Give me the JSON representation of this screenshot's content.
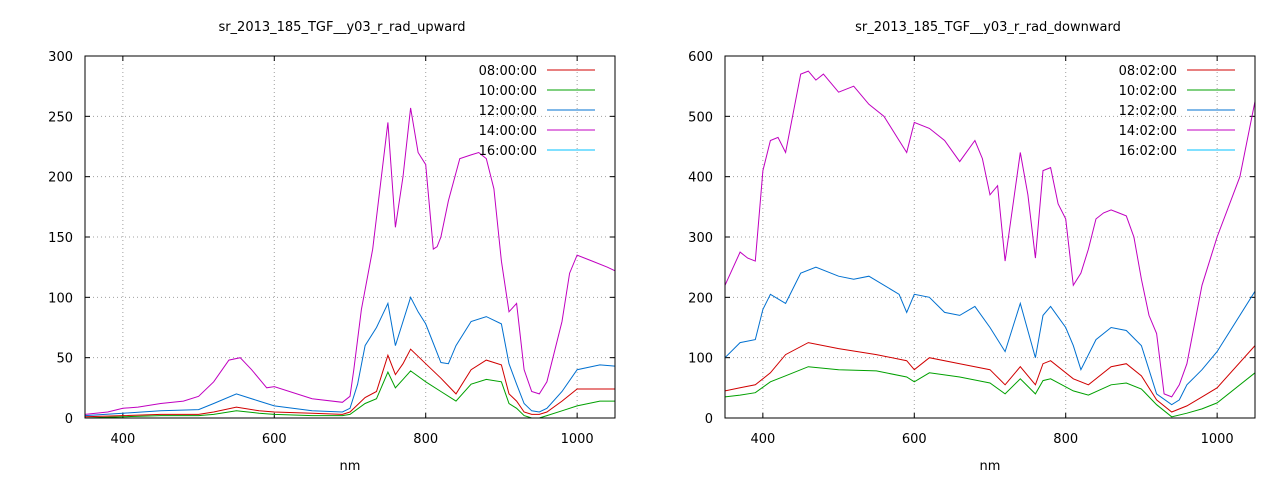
{
  "chart_data": [
    {
      "type": "line",
      "title": "sr_2013_185_TGF__y03_r_rad_upward",
      "xlabel": "nm",
      "ylabel": "",
      "xlim": [
        350,
        1050
      ],
      "ylim": [
        0,
        300
      ],
      "xticks": [
        "400",
        "600",
        "800",
        "1000"
      ],
      "yticks": [
        "0",
        "50",
        "100",
        "150",
        "200",
        "250",
        "300"
      ],
      "grid": true,
      "legend_position": "top-right",
      "series": [
        {
          "name": "08:00:00",
          "color": "#d00000",
          "x": [
            350,
            400,
            450,
            500,
            520,
            550,
            580,
            600,
            650,
            690,
            700,
            720,
            735,
            750,
            760,
            770,
            780,
            800,
            820,
            840,
            860,
            880,
            900,
            910,
            920,
            930,
            940,
            950,
            960,
            980,
            1000,
            1030,
            1050
          ],
          "y": [
            1,
            2,
            3,
            3,
            5,
            9,
            6,
            5,
            4,
            3,
            5,
            17,
            22,
            52,
            36,
            45,
            57,
            45,
            33,
            20,
            40,
            48,
            44,
            20,
            14,
            5,
            3,
            3,
            5,
            14,
            24,
            24,
            24
          ]
        },
        {
          "name": "10:00:00",
          "color": "#00a000",
          "x": [
            350,
            400,
            450,
            500,
            520,
            550,
            580,
            600,
            650,
            690,
            700,
            720,
            735,
            750,
            760,
            770,
            780,
            800,
            820,
            840,
            860,
            880,
            900,
            910,
            920,
            930,
            940,
            950,
            960,
            980,
            1000,
            1030,
            1050
          ],
          "y": [
            0,
            1,
            2,
            2,
            3,
            6,
            4,
            3,
            2,
            2,
            3,
            12,
            16,
            38,
            25,
            32,
            39,
            30,
            22,
            14,
            28,
            32,
            30,
            12,
            8,
            2,
            0,
            0,
            2,
            6,
            10,
            14,
            14
          ]
        },
        {
          "name": "12:00:00",
          "color": "#0070d0",
          "x": [
            350,
            400,
            450,
            500,
            520,
            550,
            580,
            600,
            650,
            690,
            700,
            710,
            720,
            735,
            750,
            760,
            770,
            780,
            790,
            800,
            820,
            830,
            840,
            860,
            880,
            900,
            910,
            920,
            930,
            940,
            950,
            960,
            980,
            1000,
            1030,
            1050
          ],
          "y": [
            2,
            4,
            6,
            7,
            12,
            20,
            14,
            10,
            6,
            5,
            8,
            28,
            60,
            75,
            95,
            60,
            80,
            100,
            88,
            78,
            46,
            45,
            60,
            80,
            84,
            78,
            45,
            28,
            12,
            6,
            5,
            8,
            22,
            40,
            44,
            43
          ]
        },
        {
          "name": "14:00:00",
          "color": "#c000c0",
          "x": [
            350,
            380,
            400,
            420,
            450,
            480,
            500,
            520,
            540,
            555,
            570,
            590,
            600,
            650,
            690,
            700,
            705,
            715,
            730,
            750,
            760,
            770,
            780,
            790,
            800,
            810,
            815,
            820,
            830,
            845,
            860,
            870,
            880,
            890,
            900,
            910,
            920,
            930,
            940,
            950,
            960,
            980,
            990,
            1000,
            1020,
            1040,
            1050
          ],
          "y": [
            3,
            5,
            8,
            9,
            12,
            14,
            18,
            30,
            48,
            50,
            40,
            25,
            26,
            16,
            13,
            18,
            40,
            90,
            140,
            245,
            158,
            200,
            257,
            220,
            210,
            140,
            142,
            150,
            180,
            215,
            218,
            220,
            215,
            190,
            130,
            88,
            95,
            40,
            22,
            20,
            30,
            80,
            120,
            135,
            130,
            125,
            122
          ]
        },
        {
          "name": "16:00:00",
          "color": "#00c0ff",
          "x": [
            350,
            400,
            500,
            600,
            700,
            760,
            800,
            900,
            1000,
            1050
          ],
          "y": [
            0,
            0,
            0,
            0,
            0,
            0,
            0,
            0,
            0,
            0
          ]
        }
      ]
    },
    {
      "type": "line",
      "title": "sr_2013_185_TGF__y03_r_rad_downward",
      "xlabel": "nm",
      "ylabel": "",
      "xlim": [
        350,
        1050
      ],
      "ylim": [
        0,
        600
      ],
      "xticks": [
        "400",
        "600",
        "800",
        "1000"
      ],
      "yticks": [
        "0",
        "100",
        "200",
        "300",
        "400",
        "500",
        "600"
      ],
      "grid": true,
      "legend_position": "top-right",
      "series": [
        {
          "name": "08:02:00",
          "color": "#d00000",
          "x": [
            350,
            370,
            390,
            410,
            430,
            460,
            500,
            550,
            590,
            600,
            620,
            660,
            700,
            720,
            740,
            760,
            770,
            780,
            810,
            830,
            860,
            880,
            900,
            920,
            940,
            960,
            980,
            1000,
            1050
          ],
          "y": [
            45,
            50,
            55,
            75,
            105,
            125,
            115,
            105,
            95,
            80,
            100,
            90,
            80,
            55,
            85,
            55,
            90,
            95,
            65,
            55,
            85,
            90,
            70,
            30,
            10,
            20,
            35,
            50,
            120
          ]
        },
        {
          "name": "10:02:00",
          "color": "#00a000",
          "x": [
            350,
            370,
            390,
            410,
            430,
            460,
            500,
            550,
            590,
            600,
            620,
            660,
            700,
            720,
            740,
            760,
            770,
            780,
            810,
            830,
            860,
            880,
            900,
            920,
            940,
            960,
            980,
            1000,
            1050
          ],
          "y": [
            35,
            38,
            42,
            60,
            70,
            85,
            80,
            78,
            68,
            60,
            75,
            68,
            58,
            40,
            65,
            40,
            62,
            65,
            45,
            38,
            55,
            58,
            48,
            22,
            2,
            8,
            15,
            25,
            75
          ]
        },
        {
          "name": "12:02:00",
          "color": "#0070d0",
          "x": [
            350,
            370,
            390,
            400,
            410,
            430,
            450,
            470,
            500,
            520,
            540,
            580,
            590,
            600,
            620,
            640,
            660,
            680,
            700,
            720,
            740,
            760,
            770,
            780,
            800,
            810,
            820,
            840,
            860,
            880,
            900,
            920,
            940,
            950,
            960,
            980,
            1000,
            1050
          ],
          "y": [
            100,
            125,
            130,
            180,
            205,
            190,
            240,
            250,
            235,
            230,
            235,
            205,
            175,
            205,
            200,
            175,
            170,
            185,
            150,
            110,
            190,
            100,
            170,
            185,
            150,
            120,
            80,
            130,
            150,
            145,
            120,
            40,
            22,
            30,
            55,
            80,
            110,
            210
          ]
        },
        {
          "name": "14:02:00",
          "color": "#c000c0",
          "x": [
            350,
            370,
            380,
            390,
            400,
            410,
            420,
            430,
            450,
            460,
            470,
            480,
            500,
            520,
            540,
            560,
            580,
            590,
            600,
            620,
            640,
            660,
            680,
            690,
            700,
            710,
            720,
            740,
            750,
            760,
            770,
            780,
            790,
            800,
            810,
            820,
            830,
            840,
            850,
            860,
            870,
            880,
            890,
            900,
            910,
            920,
            930,
            940,
            950,
            960,
            980,
            1000,
            1030,
            1050
          ],
          "y": [
            220,
            275,
            265,
            260,
            410,
            460,
            465,
            440,
            570,
            575,
            560,
            570,
            540,
            550,
            520,
            500,
            460,
            440,
            490,
            480,
            460,
            425,
            460,
            430,
            370,
            385,
            260,
            440,
            370,
            265,
            410,
            415,
            355,
            330,
            220,
            240,
            280,
            330,
            340,
            345,
            340,
            335,
            300,
            230,
            170,
            140,
            40,
            35,
            55,
            90,
            220,
            300,
            400,
            525
          ]
        },
        {
          "name": "16:02:00",
          "color": "#00c0ff",
          "x": [
            350,
            400,
            500,
            600,
            700,
            800,
            900,
            1000,
            1050
          ],
          "y": [
            0,
            0,
            0,
            0,
            0,
            0,
            0,
            0,
            0
          ]
        }
      ]
    }
  ]
}
